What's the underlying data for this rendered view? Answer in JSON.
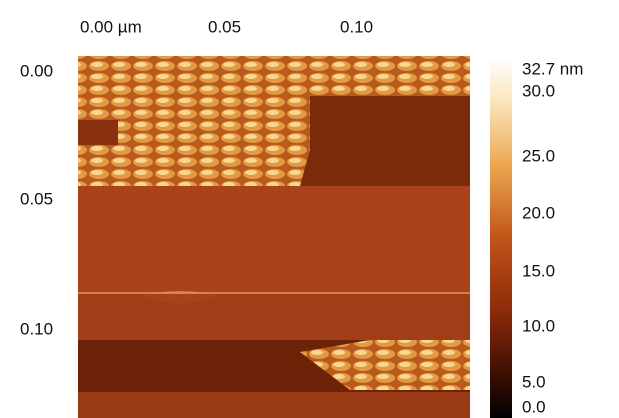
{
  "x_axis": {
    "labels": [
      "0.00 µm",
      "0.05",
      "0.10"
    ]
  },
  "y_axis": {
    "labels": [
      "0.00",
      "0.05",
      "0.10"
    ]
  },
  "colorbar": {
    "labels": [
      "32.7 nm",
      "30.0",
      "25.0",
      "20.0",
      "15.0",
      "10.0",
      "5.0",
      "0.0"
    ]
  }
}
